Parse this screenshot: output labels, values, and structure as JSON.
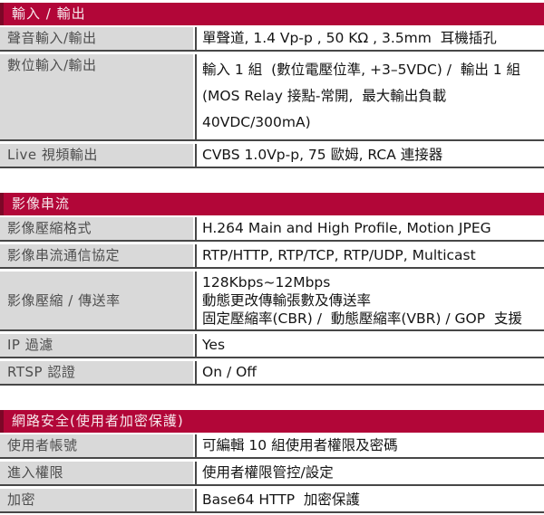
{
  "colors": {
    "accent": "#B20638",
    "accent-dark": "#7C0727",
    "label-bg": "#D9D9D9",
    "label-fg": "#4E4E4E",
    "value-fg": "#151515",
    "border": "#474747",
    "header-fg": "#F7E9ED"
  },
  "sections": [
    {
      "title": "輸入 / 輸出",
      "rows": [
        {
          "label": "聲音輸入/輸出",
          "value_lines": [
            "單聲道, 1.4 Vp-p , 50 KΩ , 3.5mm  耳機插孔"
          ],
          "style": ""
        },
        {
          "label": "數位輸入/輸出",
          "value_lines": [
            "輸入 1 組  (數位電壓位準, +3–5VDC) /  輸出 1 組",
            "(MOS Relay 接點-常開,  最大輸出負載",
            "40VDC/300mA)"
          ],
          "style": "spaced"
        },
        {
          "label": "Live 視頻輸出",
          "value_lines": [
            "CVBS 1.0Vp-p, 75 歐姆, RCA 連接器"
          ],
          "style": ""
        }
      ]
    },
    {
      "title": "影像串流",
      "rows": [
        {
          "label": "影像壓縮格式",
          "value_lines": [
            "H.264 Main and High Profile, Motion JPEG"
          ],
          "style": ""
        },
        {
          "label": "影像串流通信協定",
          "value_lines": [
            "RTP/HTTP, RTP/TCP, RTP/UDP, Multicast"
          ],
          "style": ""
        },
        {
          "label": "影像壓縮 / 傳送率",
          "value_lines": [
            "128Kbps~12Mbps",
            "動態更改傳輸張數及傳送率",
            "固定壓縮率(CBR) /  動態壓縮率(VBR) / GOP  支援"
          ],
          "style": "tight center-label"
        },
        {
          "label": "IP 過濾",
          "value_lines": [
            "Yes"
          ],
          "style": ""
        },
        {
          "label": "RTSP 認證",
          "value_lines": [
            "On / Off"
          ],
          "style": ""
        }
      ]
    },
    {
      "title": "網路安全(使用者加密保護)",
      "rows": [
        {
          "label": "使用者帳號",
          "value_lines": [
            "可編輯 10 組使用者權限及密碼"
          ],
          "style": ""
        },
        {
          "label": "進入權限",
          "value_lines": [
            "使用者權限管控/設定"
          ],
          "style": ""
        },
        {
          "label": "加密",
          "value_lines": [
            "Base64 HTTP  加密保護"
          ],
          "style": ""
        }
      ]
    }
  ]
}
